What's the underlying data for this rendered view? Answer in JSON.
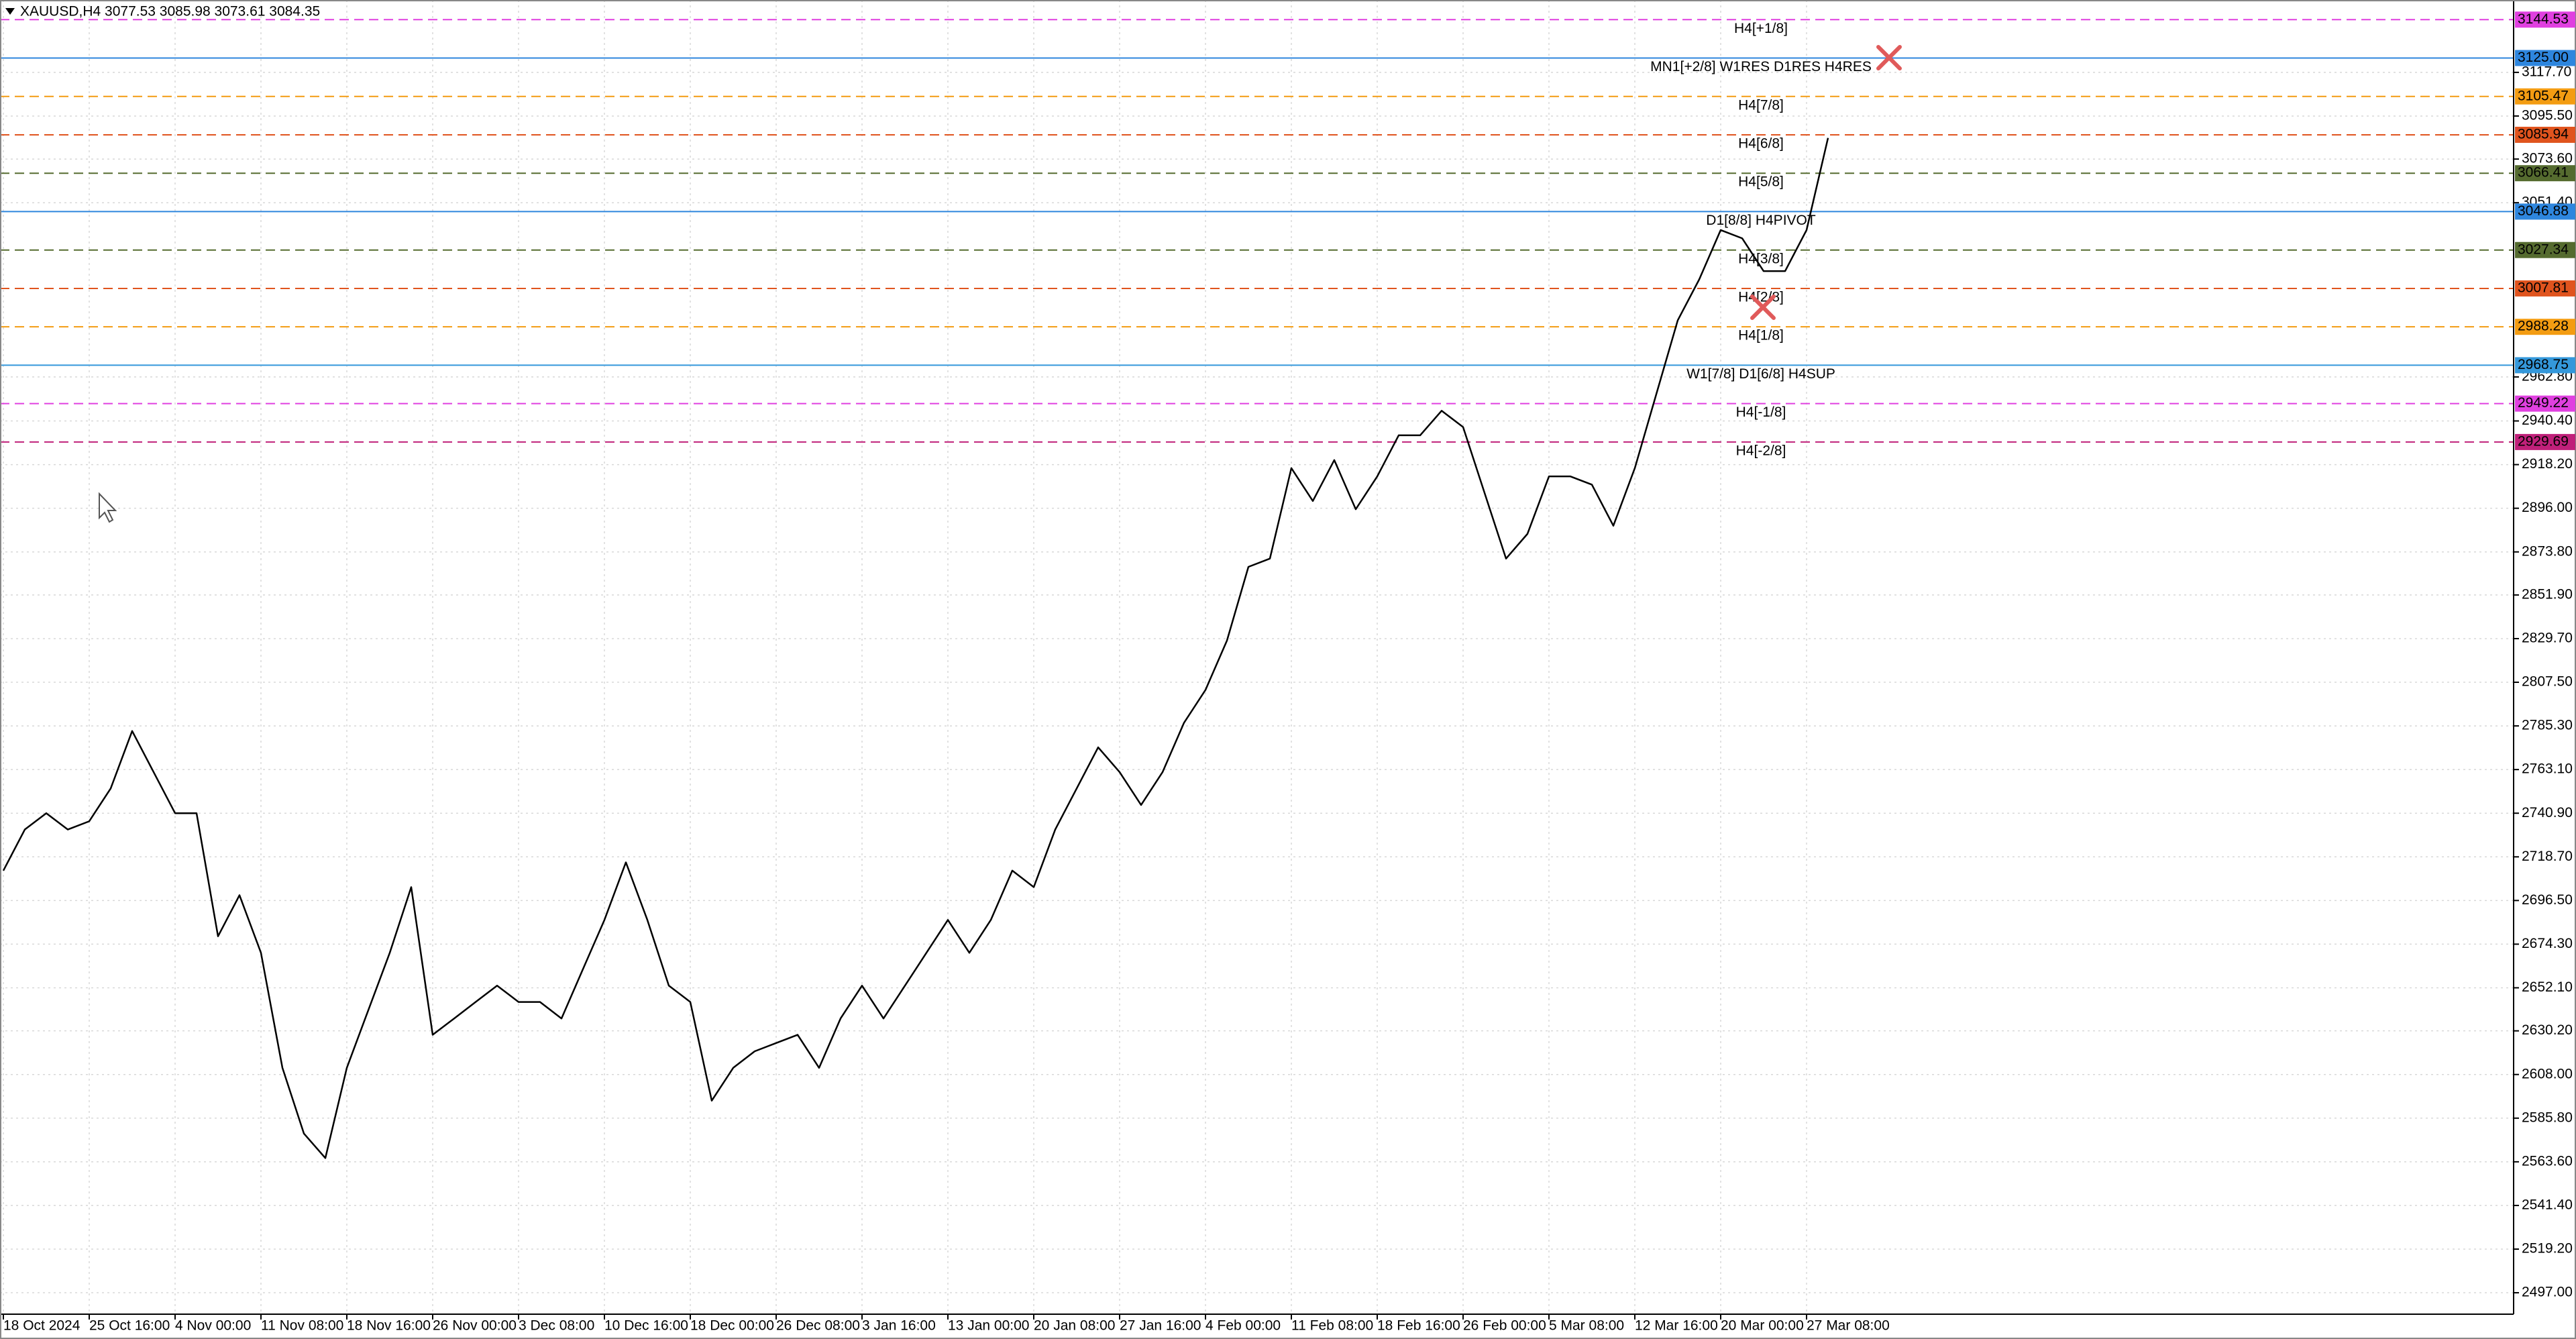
{
  "chart_data": {
    "type": "line",
    "title": "XAUUSD,H4  3077.53 3085.98 3073.61 3084.35",
    "color": "#000000",
    "categories": [
      "18 Oct 2024",
      null,
      null,
      null,
      "25 Oct 16:00",
      null,
      null,
      null,
      "4 Nov 00:00",
      null,
      null,
      null,
      "11 Nov 08:00",
      null,
      null,
      null,
      "18 Nov 16:00",
      null,
      null,
      null,
      "26 Nov 00:00",
      null,
      null,
      null,
      "3 Dec 08:00",
      null,
      null,
      null,
      "10 Dec 16:00",
      null,
      null,
      null,
      "18 Dec 00:00",
      null,
      null,
      null,
      "26 Dec 08:00",
      null,
      null,
      null,
      "3 Jan 16:00",
      null,
      null,
      null,
      "13 Jan 00:00",
      null,
      null,
      null,
      "20 Jan 08:00",
      null,
      null,
      null,
      "27 Jan 16:00",
      null,
      null,
      null,
      "4 Feb 00:00",
      null,
      null,
      null,
      "11 Feb 08:00",
      null,
      null,
      null,
      "18 Feb 16:00",
      null,
      null,
      null,
      "26 Feb 00:00",
      null,
      null,
      null,
      "5 Mar 08:00",
      null,
      null,
      null,
      "12 Mar 16:00",
      null,
      null,
      null,
      "20 Mar 00:00",
      null,
      null,
      null,
      "27 Mar 08:00",
      null
    ],
    "values": [
      2711.7,
      2732.6,
      2740.9,
      2732.6,
      2736.8,
      2753.5,
      2782.7,
      2761.8,
      2740.9,
      2740.9,
      2678.3,
      2699.2,
      2669.9,
      2611.4,
      2578.0,
      2565.5,
      2611.4,
      2640.7,
      2669.9,
      2703.3,
      2628.2,
      2636.5,
      2644.9,
      2653.2,
      2644.9,
      2644.9,
      2636.5,
      2661.6,
      2686.6,
      2715.9,
      2686.6,
      2653.2,
      2644.9,
      2594.7,
      2611.4,
      2619.8,
      2624.0,
      2628.2,
      2611.4,
      2636.5,
      2653.2,
      2636.5,
      2653.2,
      2669.9,
      2686.6,
      2669.9,
      2686.6,
      2711.7,
      2703.3,
      2732.6,
      2753.5,
      2774.4,
      2761.8,
      2745.1,
      2761.8,
      2786.9,
      2803.6,
      2828.7,
      2866.2,
      2870.4,
      2916.4,
      2899.7,
      2920.5,
      2895.5,
      2912.2,
      2933.1,
      2933.1,
      2945.6,
      2937.3,
      2903.8,
      2870.4,
      2883.0,
      2912.2,
      2912.2,
      2908.0,
      2887.1,
      2916.4,
      2954.0,
      2991.6,
      3012.4,
      3037.5,
      3033.3,
      3016.6,
      3016.6,
      3037.5,
      3084.35
    ],
    "ylim": [
      2486.1,
      3152.8
    ],
    "yticks": [
      {
        "value": 3117.7,
        "label": "3117.70"
      },
      {
        "value": 3095.5,
        "label": "3095.50"
      },
      {
        "value": 3073.6,
        "label": "3073.60"
      },
      {
        "value": 3051.4,
        "label": "3051.40"
      },
      {
        "value": 2962.8,
        "label": "2962.80"
      },
      {
        "value": 2940.4,
        "label": "2940.40"
      },
      {
        "value": 2918.2,
        "label": "2918.20"
      },
      {
        "value": 2896,
        "label": "2896.00"
      },
      {
        "value": 2873.8,
        "label": "2873.80"
      },
      {
        "value": 2851.9,
        "label": "2851.90"
      },
      {
        "value": 2829.7,
        "label": "2829.70"
      },
      {
        "value": 2807.5,
        "label": "2807.50"
      },
      {
        "value": 2785.3,
        "label": "2785.30"
      },
      {
        "value": 2763.1,
        "label": "2763.10"
      },
      {
        "value": 2740.9,
        "label": "2740.90"
      },
      {
        "value": 2718.7,
        "label": "2718.70"
      },
      {
        "value": 2696.5,
        "label": "2696.50"
      },
      {
        "value": 2674.3,
        "label": "2674.30"
      },
      {
        "value": 2652.1,
        "label": "2652.10"
      },
      {
        "value": 2630.2,
        "label": "2630.20"
      },
      {
        "value": 2608,
        "label": "2608.00"
      },
      {
        "value": 2585.8,
        "label": "2585.80"
      },
      {
        "value": 2563.6,
        "label": "2563.60"
      },
      {
        "value": 2541.4,
        "label": "2541.40"
      },
      {
        "value": 2519.2,
        "label": "2519.20"
      },
      {
        "value": 2497,
        "label": "2497.00"
      }
    ],
    "grid": true,
    "levels": [
      {
        "label": "H4[+1/8]",
        "price": 3144.53,
        "price_label": "3144.53",
        "color": "#e040e0",
        "style": "dashed"
      },
      {
        "label": "MN1[+2/8] W1RES D1RES H4RES",
        "price": 3125.0,
        "price_label": "3125.00",
        "color": "#2e86de",
        "style": "solid"
      },
      {
        "label": "H4[7/8]",
        "price": 3105.47,
        "price_label": "3105.47",
        "color": "#f39c12",
        "style": "dashed"
      },
      {
        "label": "H4[6/8]",
        "price": 3085.94,
        "price_label": "3085.94",
        "color": "#e0541e",
        "style": "dashed"
      },
      {
        "label": "H4[5/8]",
        "price": 3066.41,
        "price_label": "3066.41",
        "color": "#556b2f",
        "style": "dashed"
      },
      {
        "label": "D1[8/8] H4PIVOT",
        "price": 3046.88,
        "price_label": "3046.88",
        "color": "#2e86de",
        "style": "solid"
      },
      {
        "label": "H4[3/8]",
        "price": 3027.34,
        "price_label": "3027.34",
        "color": "#556b2f",
        "style": "dashed"
      },
      {
        "label": "H4[2/8]",
        "price": 3007.81,
        "price_label": "3007.81",
        "color": "#e0541e",
        "style": "dashed"
      },
      {
        "label": "H4[1/8]",
        "price": 2988.28,
        "price_label": "2988.28",
        "color": "#f39c12",
        "style": "dashed"
      },
      {
        "label": "W1[7/8] D1[6/8] H4SUP",
        "price": 2968.75,
        "price_label": "2968.75",
        "color": "#3498db",
        "style": "solid"
      },
      {
        "label": "H4[-1/8]",
        "price": 2949.22,
        "price_label": "2949.22",
        "color": "#e040e0",
        "style": "dashed"
      },
      {
        "label": "H4[-2/8]",
        "price": 2929.69,
        "price_label": "2929.69",
        "color": "#c0207a",
        "style": "dashed"
      }
    ]
  }
}
